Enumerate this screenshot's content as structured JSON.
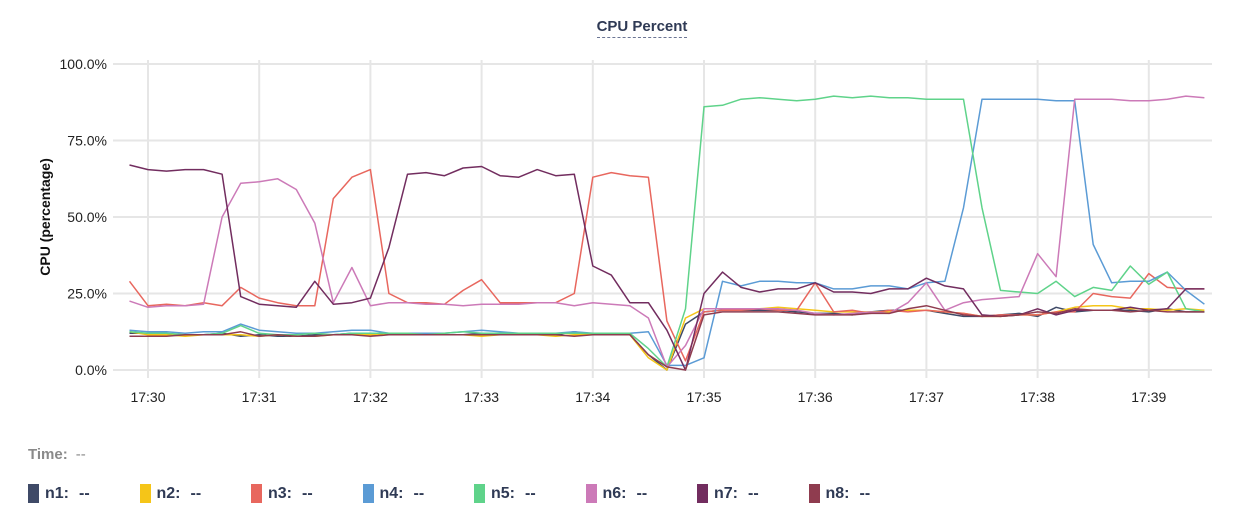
{
  "chart_data": {
    "type": "line",
    "title": "CPU Percent",
    "ylabel": "CPU (percentage)",
    "xlabel": "",
    "ylim": [
      0,
      100
    ],
    "yticks": [
      "0.0%",
      "25.0%",
      "50.0%",
      "75.0%",
      "100.0%"
    ],
    "xticks": [
      "17:30",
      "17:31",
      "17:32",
      "17:33",
      "17:34",
      "17:35",
      "17:36",
      "17:37",
      "17:38",
      "17:39"
    ],
    "grid": true,
    "x": [
      "17:29:50",
      "17:30:00",
      "17:30:10",
      "17:30:20",
      "17:30:30",
      "17:30:40",
      "17:30:50",
      "17:31:00",
      "17:31:10",
      "17:31:20",
      "17:31:30",
      "17:31:40",
      "17:31:50",
      "17:32:00",
      "17:32:10",
      "17:32:20",
      "17:32:30",
      "17:32:40",
      "17:32:50",
      "17:33:00",
      "17:33:10",
      "17:33:20",
      "17:33:30",
      "17:33:40",
      "17:33:50",
      "17:34:00",
      "17:34:10",
      "17:34:20",
      "17:34:30",
      "17:34:40",
      "17:34:50",
      "17:35:00",
      "17:35:10",
      "17:35:20",
      "17:35:30",
      "17:35:40",
      "17:35:50",
      "17:36:00",
      "17:36:10",
      "17:36:20",
      "17:36:30",
      "17:36:40",
      "17:36:50",
      "17:37:00",
      "17:37:10",
      "17:37:20",
      "17:37:30",
      "17:37:40",
      "17:37:50",
      "17:38:00",
      "17:38:10",
      "17:38:20",
      "17:38:30",
      "17:38:40",
      "17:38:50",
      "17:39:00",
      "17:39:10",
      "17:39:20",
      "17:39:30"
    ],
    "series": [
      {
        "name": "n1",
        "color": "#3f4a67",
        "values": [
          12,
          12,
          11.5,
          11.5,
          11.5,
          12,
          11,
          11.5,
          11,
          11,
          11.5,
          11.5,
          12,
          11.5,
          11.5,
          11.5,
          11.5,
          11.5,
          11.5,
          12,
          11.5,
          11.5,
          11.5,
          11.5,
          12.5,
          11.5,
          11.5,
          11.5,
          5,
          0,
          15,
          19,
          19.5,
          19.5,
          19.5,
          19.5,
          19,
          18.5,
          18.5,
          18,
          19,
          19.5,
          19.5,
          19.5,
          18.5,
          17.5,
          17.5,
          18,
          18.5,
          17.5,
          20.5,
          19,
          19.5,
          19.5,
          19.5,
          19,
          20,
          19,
          19
        ]
      },
      {
        "name": "n2",
        "color": "#f5c518",
        "values": [
          12.5,
          11.5,
          11.5,
          11,
          11.5,
          11.5,
          11.5,
          11,
          11.5,
          11,
          11,
          11.5,
          11.5,
          11.5,
          12,
          11.5,
          11.5,
          11.5,
          11.5,
          11,
          11.5,
          11.5,
          11.5,
          11,
          11.5,
          11.5,
          11.5,
          11.5,
          4,
          0,
          17,
          20,
          20,
          20,
          20,
          20.5,
          20,
          19.5,
          19,
          19,
          19,
          19,
          19.5,
          19.5,
          19,
          18.5,
          17.5,
          17.5,
          18,
          18,
          19,
          20.5,
          21,
          21,
          20,
          20,
          19.5,
          20,
          19.5
        ]
      },
      {
        "name": "n3",
        "color": "#e8675e",
        "values": [
          29,
          21,
          21.5,
          21,
          22,
          21,
          27,
          23.5,
          22,
          21,
          21,
          56,
          63,
          65.5,
          25,
          22,
          22,
          21.5,
          26,
          29.5,
          22,
          22,
          22,
          22,
          25,
          63,
          64.5,
          63.5,
          63,
          16,
          3,
          19,
          19.5,
          19.5,
          20,
          19.5,
          19.5,
          28.5,
          19,
          19.5,
          18.5,
          19.5,
          19,
          19.5,
          19,
          18.5,
          17.5,
          18,
          18,
          18,
          19,
          19,
          25,
          24,
          23.5,
          31.5,
          27,
          26.5,
          26.5
        ]
      },
      {
        "name": "n4",
        "color": "#5b9bd5",
        "values": [
          13,
          12.5,
          12.5,
          12,
          12.5,
          12.5,
          15,
          13,
          12.5,
          12,
          12,
          12.5,
          13,
          13,
          12,
          12,
          12,
          12,
          12.5,
          13,
          12.5,
          12,
          12,
          12,
          12.5,
          12,
          12,
          12,
          12.5,
          1.5,
          1.5,
          4,
          29,
          27.5,
          29,
          29,
          28.5,
          28.5,
          26.5,
          26.5,
          27.5,
          27.5,
          26.5,
          28.5,
          29,
          53,
          88.5,
          88.5,
          88.5,
          88.5,
          88,
          88,
          41,
          28.5,
          29,
          29,
          32,
          26,
          21.5
        ]
      },
      {
        "name": "n5",
        "color": "#5fd38a",
        "values": [
          12.5,
          12,
          12,
          11.5,
          11.5,
          12,
          14.5,
          12,
          11.5,
          11.5,
          12,
          11.5,
          12,
          12,
          12,
          12,
          11.5,
          12,
          12.5,
          12,
          12,
          12,
          12,
          12,
          12,
          12,
          12,
          12,
          7,
          1,
          20,
          86,
          86.5,
          88.5,
          89,
          88.5,
          88,
          88.5,
          89.5,
          89,
          89.5,
          89,
          89,
          88.5,
          88.5,
          88.5,
          53,
          26,
          25.5,
          25,
          29,
          24,
          27,
          26,
          34,
          28,
          32,
          20,
          19
        ]
      },
      {
        "name": "n6",
        "color": "#cc7ab8",
        "values": [
          22.5,
          20.5,
          21,
          21,
          21.5,
          50,
          61,
          61.5,
          62.5,
          59,
          48,
          22,
          33.5,
          21,
          22,
          22,
          21.5,
          21.5,
          21,
          21.5,
          21.5,
          21.5,
          22,
          22,
          21,
          22,
          21.5,
          21,
          17,
          1,
          8,
          20,
          20,
          20,
          20,
          20,
          19.5,
          18.5,
          18,
          18.5,
          19,
          18.5,
          22,
          28.5,
          19.5,
          22,
          23,
          23.5,
          24,
          38,
          30.5,
          88.5,
          88.5,
          88.5,
          88,
          88,
          88.5,
          89.5,
          89
        ]
      },
      {
        "name": "n7",
        "color": "#722d5f",
        "values": [
          67,
          65.5,
          65,
          65.5,
          65.5,
          64,
          24,
          21.5,
          21,
          20.5,
          29,
          21.5,
          22,
          23.5,
          40,
          64,
          64.5,
          63.5,
          66,
          66.5,
          63.5,
          63,
          65.5,
          63.5,
          64,
          34,
          31,
          22,
          22,
          13,
          0,
          25,
          32,
          27,
          25.5,
          26.5,
          26.5,
          28.5,
          25.5,
          25.5,
          25,
          26.5,
          26.5,
          30,
          27.5,
          26.5,
          18,
          17.5,
          18,
          20,
          18,
          19.5,
          19.5,
          19.5,
          20.5,
          19.5,
          20,
          26.5,
          26.5
        ]
      },
      {
        "name": "n8",
        "color": "#8f3c4f",
        "values": [
          11,
          11,
          11,
          11.5,
          11.5,
          11.5,
          12.5,
          11,
          11.5,
          11,
          11,
          11.5,
          11.5,
          11,
          11.5,
          11.5,
          11.5,
          11.5,
          11.5,
          11.5,
          11.5,
          11.5,
          11.5,
          11.5,
          11,
          11.5,
          11.5,
          11.5,
          5,
          1,
          0,
          18,
          19,
          19,
          19,
          19,
          18.5,
          18,
          18,
          18,
          18.5,
          18.5,
          20,
          21,
          19.5,
          18,
          17.5,
          17.5,
          18,
          19,
          18.5,
          20,
          19.5,
          19.5,
          19,
          19.5,
          19,
          19,
          19
        ]
      }
    ]
  },
  "time_readout": {
    "label": "Time:",
    "value": "--"
  },
  "legend": [
    {
      "label": "n1:",
      "value": "--",
      "color": "#3f4a67"
    },
    {
      "label": "n2:",
      "value": "--",
      "color": "#f5c518"
    },
    {
      "label": "n3:",
      "value": "--",
      "color": "#e8675e"
    },
    {
      "label": "n4:",
      "value": "--",
      "color": "#5b9bd5"
    },
    {
      "label": "n5:",
      "value": "--",
      "color": "#5fd38a"
    },
    {
      "label": "n6:",
      "value": "--",
      "color": "#cc7ab8"
    },
    {
      "label": "n7:",
      "value": "--",
      "color": "#722d5f"
    },
    {
      "label": "n8:",
      "value": "--",
      "color": "#8f3c4f"
    }
  ]
}
